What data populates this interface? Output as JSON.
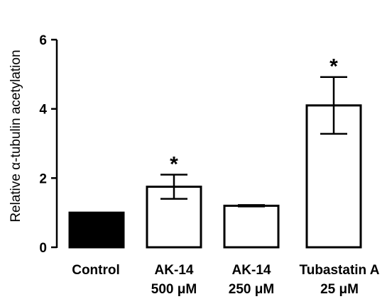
{
  "chart_data": {
    "type": "bar",
    "ylabel": "Relative α-tubulin acetylation",
    "ylim": [
      0,
      6
    ],
    "yticks": [
      "0",
      "2",
      "4",
      "6"
    ],
    "categories": [
      [
        "Control"
      ],
      [
        "AK-14",
        "500 μM"
      ],
      [
        "AK-14",
        "250 μM"
      ],
      [
        "Tubastatin A",
        "25 μM"
      ]
    ],
    "values": [
      1.0,
      1.75,
      1.2,
      4.1
    ],
    "error": [
      null,
      0.35,
      0.02,
      0.82
    ],
    "fill": [
      "#000000",
      "#ffffff",
      "#ffffff",
      "#ffffff"
    ],
    "significance": [
      "",
      "*",
      "",
      "*"
    ],
    "grid": false
  }
}
